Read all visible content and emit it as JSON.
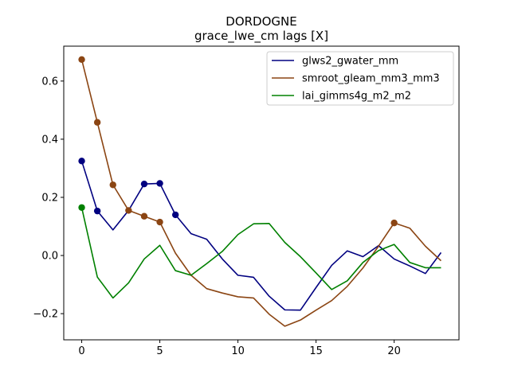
{
  "chart_data": {
    "type": "line",
    "title": "DORDOGNE",
    "subtitle": "grace_lwe_cm lags [X]",
    "xlabel": "",
    "ylabel": "",
    "xlim": [
      -1.15,
      24.15
    ],
    "ylim": [
      -0.29,
      0.72
    ],
    "xticks": [
      0,
      5,
      10,
      15,
      20
    ],
    "yticks": [
      -0.2,
      0.0,
      0.2,
      0.4,
      0.6
    ],
    "ytick_labels": [
      "−0.2",
      "0.0",
      "0.2",
      "0.4",
      "0.6"
    ],
    "legend_position": "top-right",
    "grid": false,
    "x": [
      0,
      1,
      2,
      3,
      4,
      5,
      6,
      7,
      8,
      9,
      10,
      11,
      12,
      13,
      14,
      15,
      16,
      17,
      18,
      19,
      20,
      21,
      22,
      23
    ],
    "series": [
      {
        "name": "glws2_gwater_mm",
        "color": "#000080",
        "values": [
          0.325,
          0.153,
          0.088,
          0.155,
          0.246,
          0.248,
          0.14,
          0.075,
          0.056,
          -0.012,
          -0.068,
          -0.075,
          -0.14,
          -0.187,
          -0.188,
          -0.11,
          -0.034,
          0.016,
          -0.004,
          0.034,
          -0.012,
          -0.036,
          -0.062,
          0.01
        ],
        "markers": [
          0,
          1,
          4,
          5,
          6
        ]
      },
      {
        "name": "smroot_gleam_mm3_mm3",
        "color": "#8B4513",
        "values": [
          0.674,
          0.458,
          0.243,
          0.155,
          0.135,
          0.115,
          0.008,
          -0.068,
          -0.114,
          -0.129,
          -0.142,
          -0.146,
          -0.202,
          -0.243,
          -0.222,
          -0.188,
          -0.155,
          -0.106,
          -0.043,
          0.032,
          0.112,
          0.094,
          0.032,
          -0.018
        ],
        "markers": [
          0,
          1,
          2,
          3,
          4,
          5,
          20
        ]
      },
      {
        "name": "lai_gimms4g_m2_m2",
        "color": "#008000",
        "values": [
          0.165,
          -0.074,
          -0.146,
          -0.094,
          -0.012,
          0.035,
          -0.052,
          -0.068,
          -0.028,
          0.014,
          0.072,
          0.109,
          0.11,
          0.045,
          -0.004,
          -0.06,
          -0.117,
          -0.087,
          -0.024,
          0.017,
          0.038,
          -0.024,
          -0.042,
          -0.042
        ],
        "markers": [
          0
        ]
      }
    ]
  }
}
